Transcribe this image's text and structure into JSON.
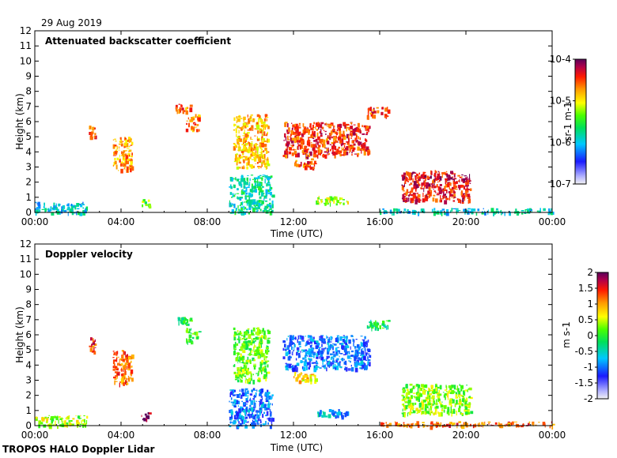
{
  "date_label": "29 Aug 2019",
  "footer_label": "TROPOS HALO Doppler Lidar",
  "chart_data": [
    {
      "type": "heatmap",
      "title": "Attenuated backscatter coefficient",
      "xlabel": "Time (UTC)",
      "ylabel": "Height (km)",
      "xlim": [
        0,
        24
      ],
      "ylim": [
        0,
        12
      ],
      "x_ticks": [
        "00:00",
        "04:00",
        "08:00",
        "12:00",
        "16:00",
        "20:00",
        "00:00"
      ],
      "y_ticks": [
        "0",
        "1",
        "2",
        "3",
        "4",
        "5",
        "6",
        "7",
        "8",
        "9",
        "10",
        "11",
        "12"
      ],
      "colorbar": {
        "scale": "log",
        "range": [
          1e-07,
          0.0001
        ],
        "unit_label": "sr-1 m-1",
        "tick_labels": [
          "10-4",
          "10-5",
          "10-6",
          "10-7"
        ],
        "tick_values": [
          0.0001,
          1e-05,
          1e-06,
          1e-07
        ]
      },
      "features": [
        {
          "t0": 0.0,
          "t1": 2.4,
          "h0": 0.0,
          "h1": 0.7,
          "level": 0.35
        },
        {
          "t0": 2.5,
          "t1": 2.8,
          "h0": 4.9,
          "h1": 5.9,
          "level": 0.8
        },
        {
          "t0": 3.6,
          "t1": 4.5,
          "h0": 2.8,
          "h1": 5.0,
          "level": 0.75
        },
        {
          "t0": 4.9,
          "t1": 5.3,
          "h0": 0.4,
          "h1": 0.9,
          "level": 0.55
        },
        {
          "t0": 6.5,
          "t1": 7.3,
          "h0": 6.7,
          "h1": 7.2,
          "level": 0.8
        },
        {
          "t0": 7.0,
          "t1": 7.6,
          "h0": 5.5,
          "h1": 6.5,
          "level": 0.78
        },
        {
          "t0": 9.2,
          "t1": 10.8,
          "h0": 3.0,
          "h1": 6.5,
          "level": 0.72
        },
        {
          "t0": 9.0,
          "t1": 11.0,
          "h0": 0.0,
          "h1": 2.5,
          "level": 0.4
        },
        {
          "t0": 11.5,
          "t1": 15.5,
          "h0": 3.8,
          "h1": 6.0,
          "level": 0.85
        },
        {
          "t0": 12.0,
          "t1": 13.0,
          "h0": 2.9,
          "h1": 3.6,
          "level": 0.82
        },
        {
          "t0": 13.0,
          "t1": 14.5,
          "h0": 0.6,
          "h1": 1.1,
          "level": 0.6
        },
        {
          "t0": 15.4,
          "t1": 16.4,
          "h0": 6.4,
          "h1": 7.0,
          "level": 0.85
        },
        {
          "t0": 16.0,
          "t1": 24.0,
          "h0": 0.0,
          "h1": 0.3,
          "level": 0.35
        },
        {
          "t0": 17.0,
          "t1": 20.2,
          "h0": 0.8,
          "h1": 2.8,
          "level": 0.88
        }
      ]
    },
    {
      "type": "heatmap",
      "title": "Doppler velocity",
      "xlabel": "Time (UTC)",
      "ylabel": "Height (km)",
      "xlim": [
        0,
        24
      ],
      "ylim": [
        0,
        12
      ],
      "x_ticks": [
        "00:00",
        "04:00",
        "08:00",
        "12:00",
        "16:00",
        "20:00",
        "00:00"
      ],
      "y_ticks": [
        "0",
        "1",
        "2",
        "3",
        "4",
        "5",
        "6",
        "7",
        "8",
        "9",
        "10",
        "11",
        "12"
      ],
      "colorbar": {
        "scale": "linear",
        "range": [
          -2,
          2
        ],
        "unit_label": "m s-1",
        "tick_labels": [
          "2",
          "1.5",
          "1",
          "0.5",
          "0",
          "-0.5",
          "-1",
          "-1.5",
          "-2"
        ],
        "tick_values": [
          2,
          1.5,
          1,
          0.5,
          0,
          -0.5,
          -1,
          -1.5,
          -2
        ]
      },
      "features": [
        {
          "t0": 0.0,
          "t1": 2.4,
          "h0": 0.0,
          "h1": 0.7,
          "level": 0.6
        },
        {
          "t0": 2.5,
          "t1": 2.8,
          "h0": 4.9,
          "h1": 5.9,
          "level": 0.85
        },
        {
          "t0": 3.6,
          "t1": 4.5,
          "h0": 2.8,
          "h1": 5.0,
          "level": 0.8
        },
        {
          "t0": 4.9,
          "t1": 5.3,
          "h0": 0.4,
          "h1": 0.9,
          "level": 0.97
        },
        {
          "t0": 6.5,
          "t1": 7.3,
          "h0": 6.7,
          "h1": 7.2,
          "level": 0.5
        },
        {
          "t0": 7.0,
          "t1": 7.6,
          "h0": 5.5,
          "h1": 6.5,
          "level": 0.5
        },
        {
          "t0": 9.2,
          "t1": 10.8,
          "h0": 3.0,
          "h1": 6.5,
          "level": 0.55
        },
        {
          "t0": 9.0,
          "t1": 11.0,
          "h0": 0.0,
          "h1": 2.5,
          "level": 0.25
        },
        {
          "t0": 11.5,
          "t1": 15.5,
          "h0": 3.8,
          "h1": 6.0,
          "level": 0.25
        },
        {
          "t0": 12.0,
          "t1": 13.0,
          "h0": 2.9,
          "h1": 3.6,
          "level": 0.7
        },
        {
          "t0": 13.0,
          "t1": 14.5,
          "h0": 0.6,
          "h1": 1.1,
          "level": 0.3
        },
        {
          "t0": 15.4,
          "t1": 16.4,
          "h0": 6.4,
          "h1": 7.0,
          "level": 0.45
        },
        {
          "t0": 16.0,
          "t1": 24.0,
          "h0": 0.0,
          "h1": 0.3,
          "level": 0.8
        },
        {
          "t0": 17.0,
          "t1": 20.2,
          "h0": 0.8,
          "h1": 2.8,
          "level": 0.58
        }
      ]
    }
  ]
}
